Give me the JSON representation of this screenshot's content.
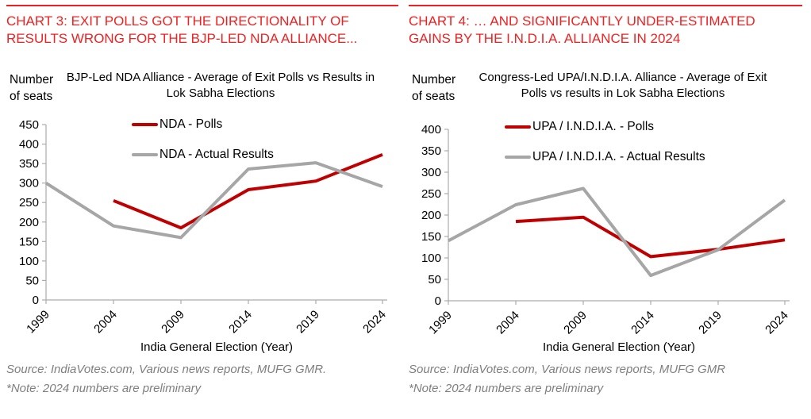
{
  "colors": {
    "accent_red": "#EE2222",
    "polls_line": "#C00000",
    "actual_line": "#A6A6A6",
    "axis_gray": "#ACACAC",
    "source_gray": "#7F7F7F"
  },
  "panels": [
    {
      "header": "CHART 3: EXIT POLLS GOT THE DIRECTIONALITY OF RESULTS WRONG FOR THE BJP-LED NDA ALLIANCE...",
      "ylabel": "Number\nof seats",
      "title": "BJP-Led NDA Alliance - Average of Exit Polls vs Results in Lok Sabha Elections",
      "xlabel": "India General Election (Year)",
      "source": "Source: IndiaVotes.com, Various news reports, MUFG GMR.",
      "note": "*Note: 2024 numbers are preliminary"
    },
    {
      "header": "CHART 4: … AND SIGNIFICANTLY UNDER-ESTIMATED GAINS BY THE I.N.D.I.A. ALLIANCE IN 2024",
      "ylabel": "Number\nof seats",
      "title": "Congress-Led UPA/I.N.D.I.A. Alliance - Average of Exit Polls vs results in Lok Sabha Elections",
      "xlabel": "India General Election (Year)",
      "source": "Source: IndiaVotes.com, Various news reports, MUFG GMR",
      "note": "*Note: 2024 numbers are preliminary"
    }
  ],
  "chart_data": [
    {
      "type": "line",
      "title": "BJP-Led NDA Alliance - Average of Exit Polls vs Results in Lok Sabha Elections",
      "xlabel": "India General Election (Year)",
      "ylabel": "Number of seats",
      "categories": [
        "1999",
        "2004",
        "2009",
        "2014",
        "2019",
        "2024"
      ],
      "ylim": [
        0,
        450
      ],
      "ytick_step": 50,
      "grid": false,
      "legend_position": "top-inside",
      "series": [
        {
          "name": "NDA - Polls",
          "color": "#C00000",
          "values": [
            null,
            255,
            185,
            283,
            305,
            373
          ]
        },
        {
          "name": "NDA - Actual Results",
          "color": "#A6A6A6",
          "values": [
            300,
            190,
            160,
            336,
            352,
            291
          ]
        }
      ]
    },
    {
      "type": "line",
      "title": "Congress-Led UPA/I.N.D.I.A. Alliance - Average of Exit Polls vs results in Lok Sabha Elections",
      "xlabel": "India General Election (Year)",
      "ylabel": "Number of seats",
      "categories": [
        "1999",
        "2004",
        "2009",
        "2014",
        "2019",
        "2024"
      ],
      "ylim": [
        0,
        400
      ],
      "ytick_step": 50,
      "grid": false,
      "legend_position": "top-inside",
      "series": [
        {
          "name": "UPA / I.N.D.I.A. - Polls",
          "color": "#C00000",
          "values": [
            null,
            185,
            195,
            103,
            120,
            142
          ]
        },
        {
          "name": "UPA / I.N.D.I.A. - Actual Results",
          "color": "#A6A6A6",
          "values": [
            140,
            224,
            262,
            59,
            119,
            235
          ]
        }
      ]
    }
  ]
}
